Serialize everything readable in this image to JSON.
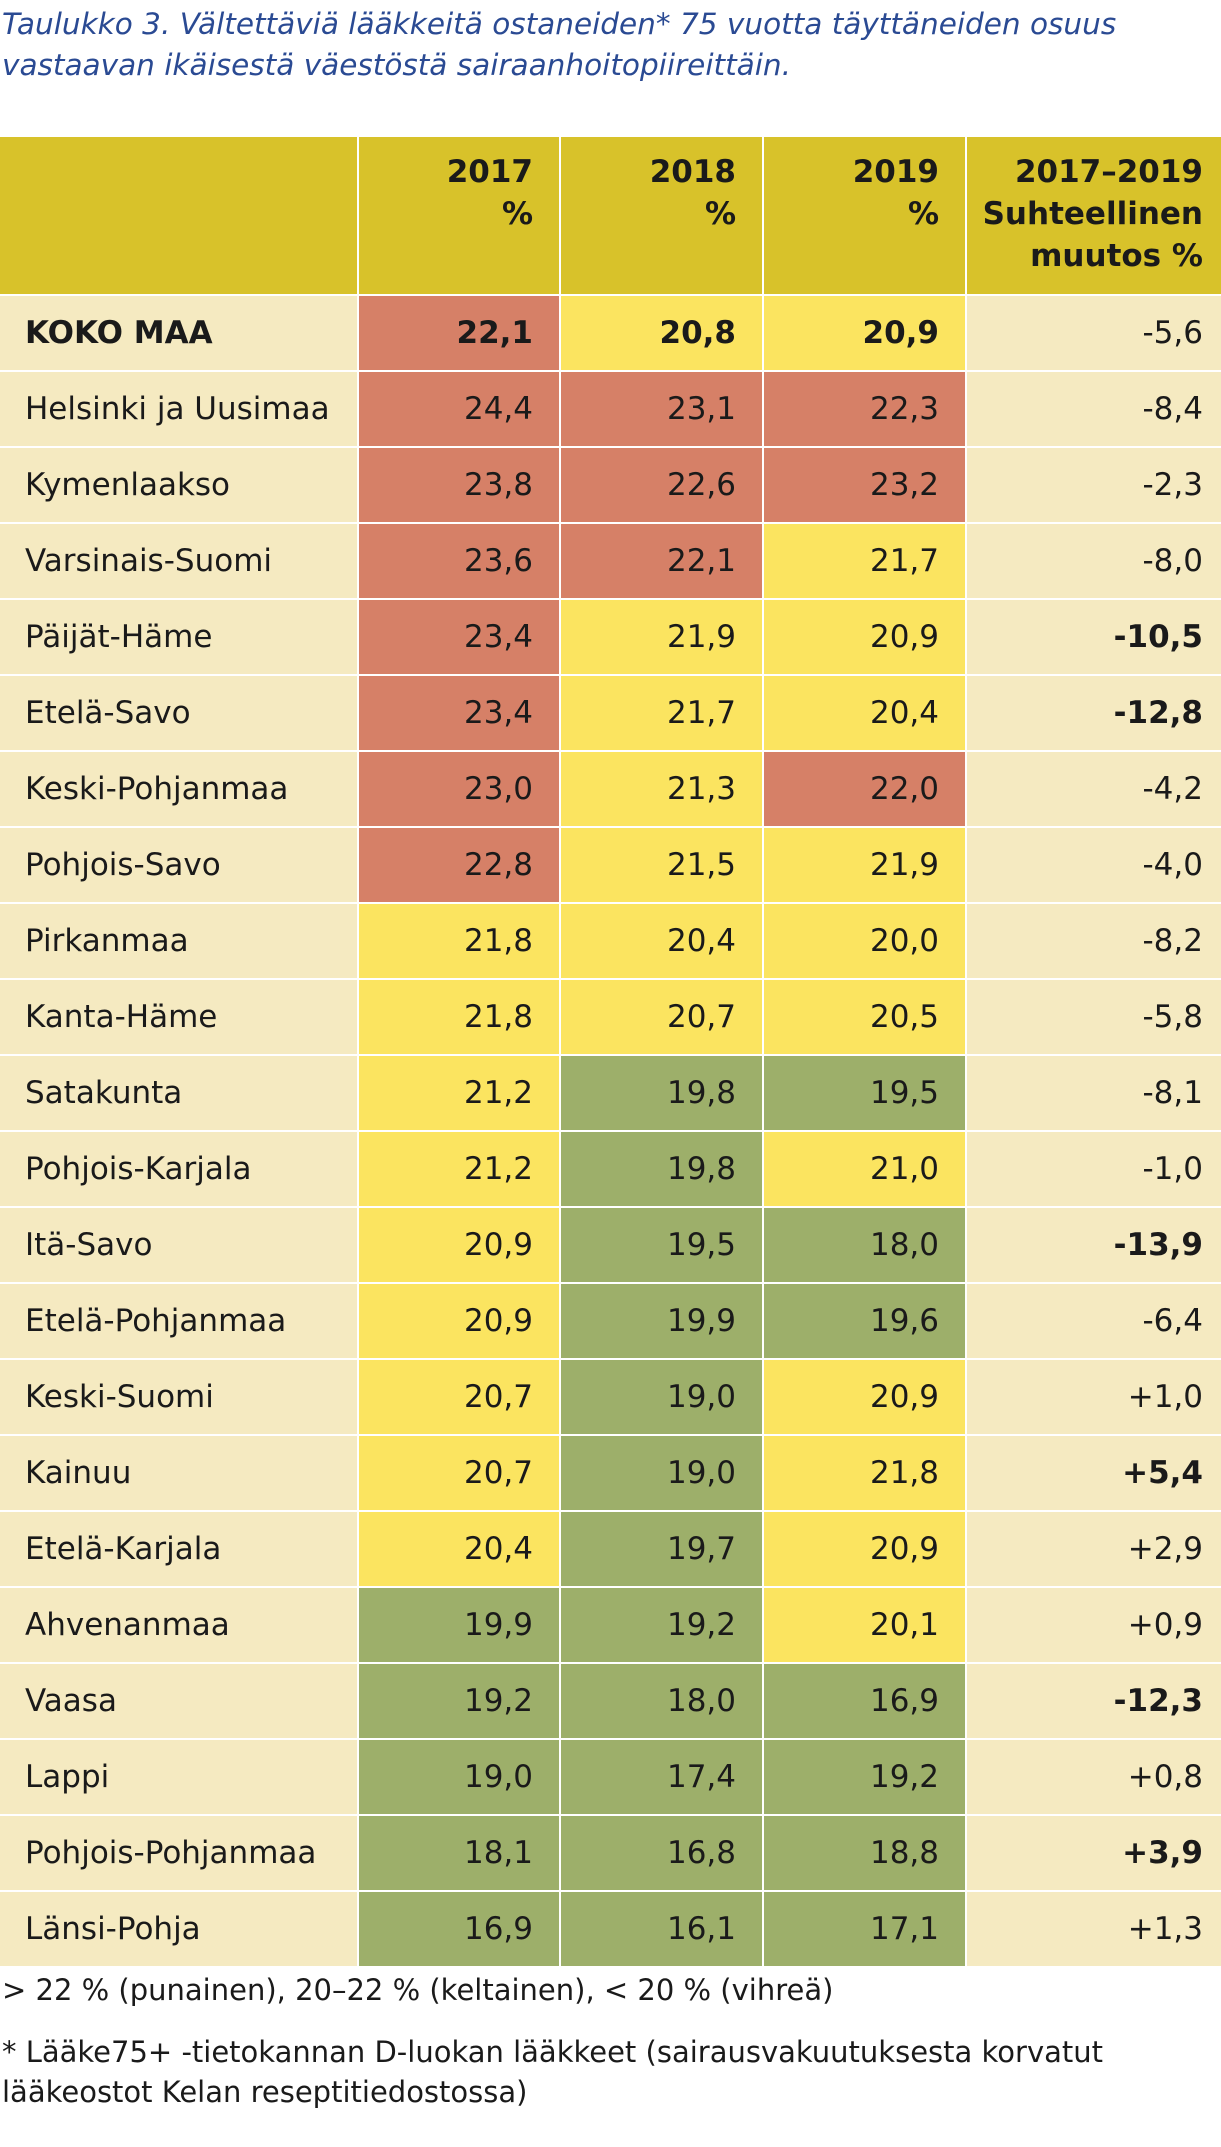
{
  "caption": {
    "line1": "Taulukko 3. Vältettäviä lääkkeitä ostaneiden* 75 vuotta täyttäneiden osuus",
    "line2": "vastaavan ikäisestä väestöstä sairaanhoitopiireittäin."
  },
  "header": {
    "y2017": [
      "2017",
      "%"
    ],
    "y2018": [
      "2018",
      "%"
    ],
    "y2019": [
      "2019",
      "%"
    ],
    "change": [
      "2017–2019",
      "Suhteellinen",
      "muutos %"
    ]
  },
  "rows": [
    {
      "name": "KOKO MAA",
      "v2017": "22,1",
      "v2018": "20,8",
      "v2019": "20,9",
      "change": "-5,6",
      "name_bold": true,
      "values_bold": true,
      "change_bold": false,
      "c2017": "red",
      "c2018": "yellow",
      "c2019": "yellow"
    },
    {
      "name": "Helsinki ja Uusimaa",
      "v2017": "24,4",
      "v2018": "23,1",
      "v2019": "22,3",
      "change": "-8,4",
      "change_bold": false,
      "c2017": "red",
      "c2018": "red",
      "c2019": "red"
    },
    {
      "name": "Kymenlaakso",
      "v2017": "23,8",
      "v2018": "22,6",
      "v2019": "23,2",
      "change": "-2,3",
      "change_bold": false,
      "c2017": "red",
      "c2018": "red",
      "c2019": "red"
    },
    {
      "name": "Varsinais-Suomi",
      "v2017": "23,6",
      "v2018": "22,1",
      "v2019": "21,7",
      "change": "-8,0",
      "change_bold": false,
      "c2017": "red",
      "c2018": "red",
      "c2019": "yellow"
    },
    {
      "name": "Päijät-Häme",
      "v2017": "23,4",
      "v2018": "21,9",
      "v2019": "20,9",
      "change": "-10,5",
      "change_bold": true,
      "c2017": "red",
      "c2018": "yellow",
      "c2019": "yellow"
    },
    {
      "name": "Etelä-Savo",
      "v2017": "23,4",
      "v2018": "21,7",
      "v2019": "20,4",
      "change": "-12,8",
      "change_bold": true,
      "c2017": "red",
      "c2018": "yellow",
      "c2019": "yellow"
    },
    {
      "name": "Keski-Pohjanmaa",
      "v2017": "23,0",
      "v2018": "21,3",
      "v2019": "22,0",
      "change": "-4,2",
      "change_bold": false,
      "c2017": "red",
      "c2018": "yellow",
      "c2019": "red"
    },
    {
      "name": "Pohjois-Savo",
      "v2017": "22,8",
      "v2018": "21,5",
      "v2019": "21,9",
      "change": "-4,0",
      "change_bold": false,
      "c2017": "red",
      "c2018": "yellow",
      "c2019": "yellow"
    },
    {
      "name": "Pirkanmaa",
      "v2017": "21,8",
      "v2018": "20,4",
      "v2019": "20,0",
      "change": "-8,2",
      "change_bold": false,
      "c2017": "yellow",
      "c2018": "yellow",
      "c2019": "yellow"
    },
    {
      "name": "Kanta-Häme",
      "v2017": "21,8",
      "v2018": "20,7",
      "v2019": "20,5",
      "change": "-5,8",
      "change_bold": false,
      "c2017": "yellow",
      "c2018": "yellow",
      "c2019": "yellow"
    },
    {
      "name": "Satakunta",
      "v2017": "21,2",
      "v2018": "19,8",
      "v2019": "19,5",
      "change": "-8,1",
      "change_bold": false,
      "c2017": "yellow",
      "c2018": "green",
      "c2019": "green"
    },
    {
      "name": "Pohjois-Karjala",
      "v2017": "21,2",
      "v2018": "19,8",
      "v2019": "21,0",
      "change": "-1,0",
      "change_bold": false,
      "c2017": "yellow",
      "c2018": "green",
      "c2019": "yellow"
    },
    {
      "name": "Itä-Savo",
      "v2017": "20,9",
      "v2018": "19,5",
      "v2019": "18,0",
      "change": "-13,9",
      "change_bold": true,
      "c2017": "yellow",
      "c2018": "green",
      "c2019": "green"
    },
    {
      "name": "Etelä-Pohjanmaa",
      "v2017": "20,9",
      "v2018": "19,9",
      "v2019": "19,6",
      "change": "-6,4",
      "change_bold": false,
      "c2017": "yellow",
      "c2018": "green",
      "c2019": "green"
    },
    {
      "name": "Keski-Suomi",
      "v2017": "20,7",
      "v2018": "19,0",
      "v2019": "20,9",
      "change": "+1,0",
      "change_bold": false,
      "c2017": "yellow",
      "c2018": "green",
      "c2019": "yellow"
    },
    {
      "name": "Kainuu",
      "v2017": "20,7",
      "v2018": "19,0",
      "v2019": "21,8",
      "change": "+5,4",
      "change_bold": true,
      "c2017": "yellow",
      "c2018": "green",
      "c2019": "yellow"
    },
    {
      "name": "Etelä-Karjala",
      "v2017": "20,4",
      "v2018": "19,7",
      "v2019": "20,9",
      "change": "+2,9",
      "change_bold": false,
      "c2017": "yellow",
      "c2018": "green",
      "c2019": "yellow"
    },
    {
      "name": "Ahvenanmaa",
      "v2017": "19,9",
      "v2018": "19,2",
      "v2019": "20,1",
      "change": "+0,9",
      "change_bold": false,
      "c2017": "green",
      "c2018": "green",
      "c2019": "yellow"
    },
    {
      "name": "Vaasa",
      "v2017": "19,2",
      "v2018": "18,0",
      "v2019": "16,9",
      "change": "-12,3",
      "change_bold": true,
      "c2017": "green",
      "c2018": "green",
      "c2019": "green"
    },
    {
      "name": "Lappi",
      "v2017": "19,0",
      "v2018": "17,4",
      "v2019": "19,2",
      "change": "+0,8",
      "change_bold": false,
      "c2017": "green",
      "c2018": "green",
      "c2019": "green"
    },
    {
      "name": "Pohjois-Pohjanmaa",
      "v2017": "18,1",
      "v2018": "16,8",
      "v2019": "18,8",
      "change": "+3,9",
      "change_bold": true,
      "c2017": "green",
      "c2018": "green",
      "c2019": "green"
    },
    {
      "name": "Länsi-Pohja",
      "v2017": "16,9",
      "v2018": "16,1",
      "v2019": "17,1",
      "change": "+1,3",
      "change_bold": false,
      "c2017": "green",
      "c2018": "green",
      "c2019": "green"
    }
  ],
  "colors": {
    "red": "#d68067",
    "yellow": "#fbe460",
    "green": "#9daf6a",
    "header": "#d8c22a",
    "light": "#f5eac1",
    "caption": "#2a4a93"
  },
  "notes": {
    "legend": "> 22 % (punainen), 20–22 % (keltainen), < 20 % (vihreä)",
    "footnote_line1": "* Lääke75+ -tietokannan D-luokan lääkkeet (sairausvakuutuksesta korvatut",
    "footnote_line2": "lääkeostot Kelan reseptitiedostossa)"
  }
}
